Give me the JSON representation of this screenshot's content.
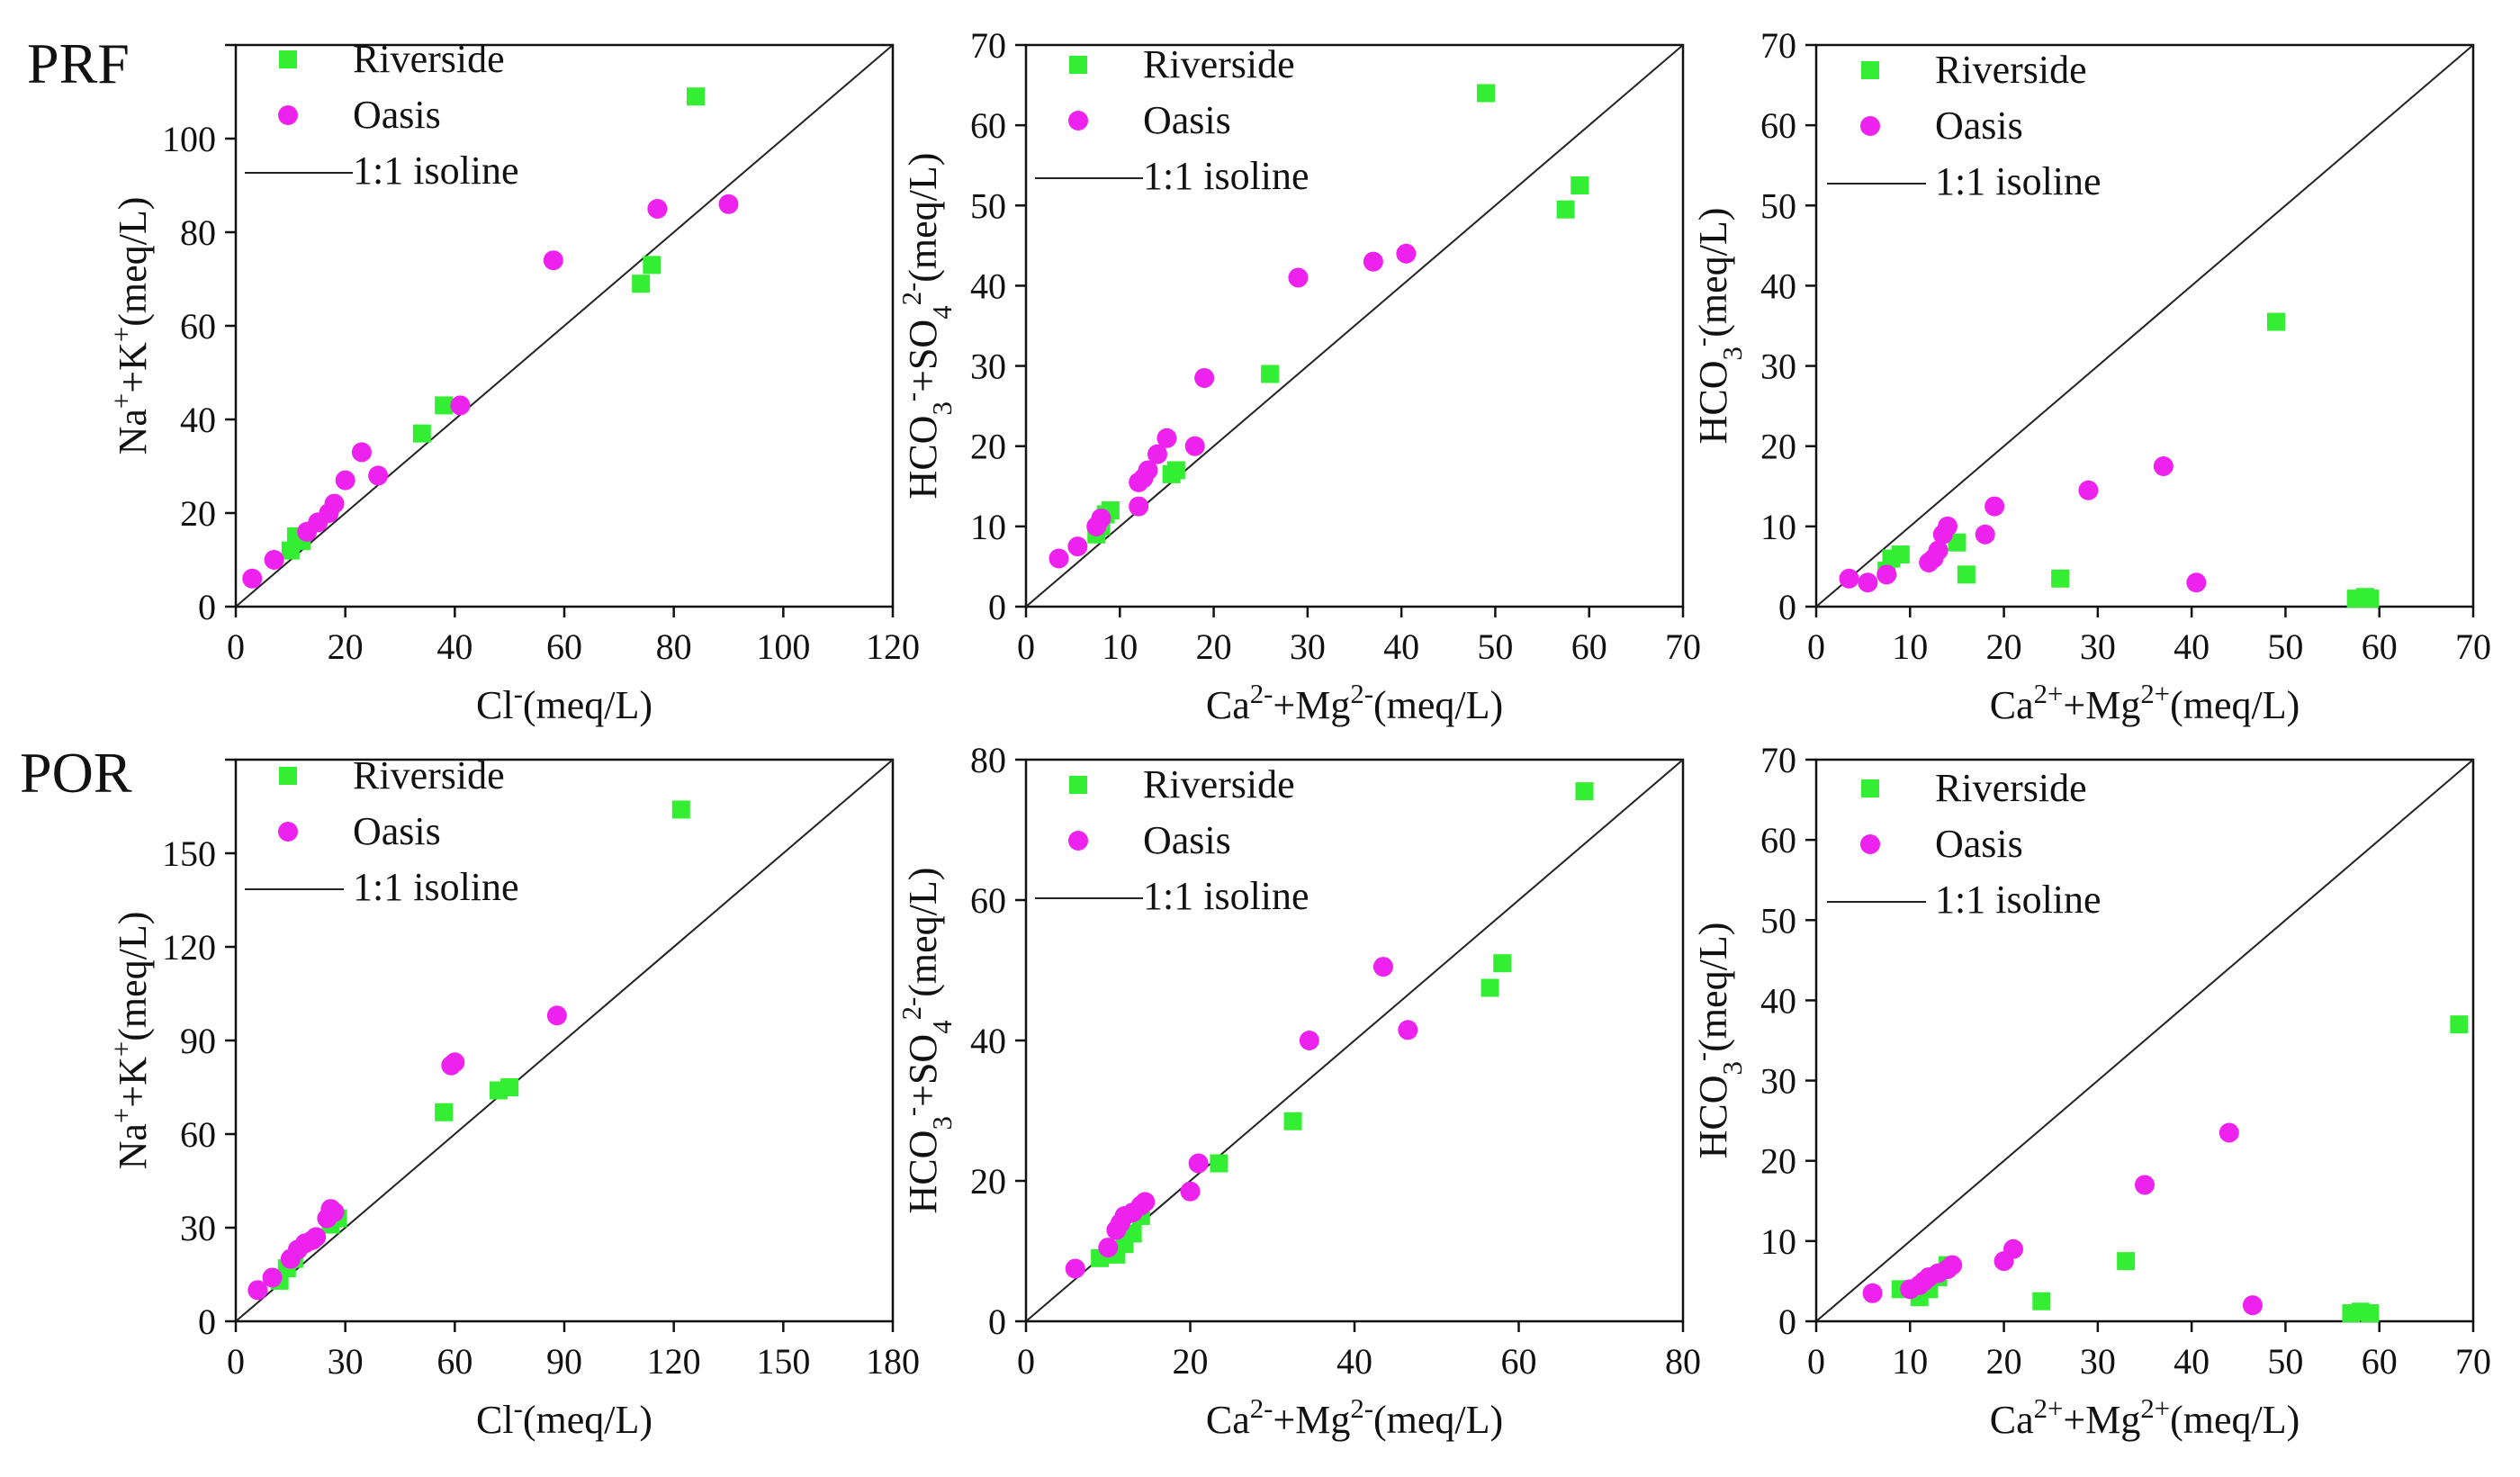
{
  "row_labels": [
    "PRF",
    "POR"
  ],
  "legend": {
    "riverside": "Riverside",
    "oasis": "Oasis",
    "isoline": "1:1 isoline"
  },
  "colors": {
    "riverside": "#33ee33",
    "oasis": "#ee22ee",
    "axis": "#111111",
    "isoline": "#222222"
  },
  "chart_data": [
    {
      "type": "scatter",
      "row": "PRF",
      "xlabel": "Cl⁻(meq/L)",
      "ylabel": "Na⁺+K⁺(meq/L)",
      "xlim": [
        0,
        120
      ],
      "ylim": [
        0,
        120
      ],
      "xticks": [
        0,
        20,
        40,
        60,
        80,
        100,
        120
      ],
      "yticks": [
        0,
        20,
        40,
        60,
        80,
        100,
        120
      ],
      "yticks_shown": [
        0,
        20,
        40,
        60,
        80,
        100
      ],
      "series": [
        {
          "name": "Riverside",
          "points": [
            [
              10,
              12
            ],
            [
              11,
              15
            ],
            [
              12,
              14
            ],
            [
              34,
              37
            ],
            [
              38,
              43
            ],
            [
              74,
              69
            ],
            [
              76,
              73
            ],
            [
              84,
              109
            ]
          ]
        },
        {
          "name": "Oasis",
          "points": [
            [
              3,
              6
            ],
            [
              7,
              10
            ],
            [
              13,
              16
            ],
            [
              15,
              18
            ],
            [
              17,
              20
            ],
            [
              18,
              22
            ],
            [
              20,
              27
            ],
            [
              23,
              33
            ],
            [
              26,
              28
            ],
            [
              41,
              43
            ],
            [
              58,
              74
            ],
            [
              77,
              85
            ],
            [
              90,
              86
            ]
          ]
        }
      ]
    },
    {
      "type": "scatter",
      "row": "PRF",
      "xlabel": "Ca²⁻+Mg²⁻(meq/L)",
      "ylabel": "HCO₃⁻+SO₄²⁻(meq/L)",
      "xlim": [
        0,
        70
      ],
      "ylim": [
        0,
        70
      ],
      "xticks": [
        0,
        10,
        20,
        30,
        40,
        50,
        60,
        70
      ],
      "yticks": [
        0,
        10,
        20,
        30,
        40,
        50,
        60,
        70
      ],
      "yticks_shown": [
        0,
        10,
        20,
        30,
        40,
        50,
        60,
        70
      ],
      "series": [
        {
          "name": "Riverside",
          "points": [
            [
              7.5,
              9
            ],
            [
              8,
              10
            ],
            [
              8.5,
              11.5
            ],
            [
              9,
              12
            ],
            [
              15.5,
              16.5
            ],
            [
              16,
              17
            ],
            [
              26,
              29
            ],
            [
              49,
              64
            ],
            [
              57.5,
              49.5
            ],
            [
              59,
              52.5
            ]
          ]
        },
        {
          "name": "Oasis",
          "points": [
            [
              3.5,
              6
            ],
            [
              5.5,
              7.5
            ],
            [
              7.5,
              10
            ],
            [
              8,
              11
            ],
            [
              12,
              12.5
            ],
            [
              12,
              15.5
            ],
            [
              12.5,
              16
            ],
            [
              13,
              17
            ],
            [
              14,
              19
            ],
            [
              15,
              21
            ],
            [
              18,
              20
            ],
            [
              19,
              28.5
            ],
            [
              29,
              41
            ],
            [
              37,
              43
            ],
            [
              40.5,
              44
            ]
          ]
        }
      ]
    },
    {
      "type": "scatter",
      "row": "PRF",
      "xlabel": "Ca²⁺+Mg²⁺(meq/L)",
      "ylabel": "HCO₃⁻(meq/L)",
      "xlim": [
        0,
        70
      ],
      "ylim": [
        0,
        70
      ],
      "xticks": [
        0,
        10,
        20,
        30,
        40,
        50,
        60,
        70
      ],
      "yticks": [
        0,
        10,
        20,
        30,
        40,
        50,
        60,
        70
      ],
      "yticks_shown": [
        0,
        10,
        20,
        30,
        40,
        50,
        60,
        70
      ],
      "series": [
        {
          "name": "Riverside",
          "points": [
            [
              7.5,
              4.5
            ],
            [
              8,
              6
            ],
            [
              9,
              6.5
            ],
            [
              15,
              8
            ],
            [
              16,
              4
            ],
            [
              26,
              3.5
            ],
            [
              49,
              35.5
            ],
            [
              57.5,
              1
            ],
            [
              58.5,
              1.2
            ],
            [
              59,
              1
            ]
          ]
        },
        {
          "name": "Oasis",
          "points": [
            [
              3.5,
              3.5
            ],
            [
              5.5,
              3
            ],
            [
              7.5,
              4
            ],
            [
              12,
              5.5
            ],
            [
              12.5,
              6
            ],
            [
              13,
              7
            ],
            [
              13.5,
              9
            ],
            [
              14,
              10
            ],
            [
              18,
              9
            ],
            [
              19,
              12.5
            ],
            [
              29,
              14.5
            ],
            [
              37,
              17.5
            ],
            [
              40.5,
              3
            ]
          ]
        }
      ]
    },
    {
      "type": "scatter",
      "row": "POR",
      "xlabel": "Cl⁻(meq/L)",
      "ylabel": "Na⁺+K⁺(meq/L)",
      "xlim": [
        0,
        180
      ],
      "ylim": [
        0,
        180
      ],
      "xticks": [
        0,
        30,
        60,
        90,
        120,
        150,
        180
      ],
      "yticks": [
        0,
        30,
        60,
        90,
        120,
        150,
        180
      ],
      "yticks_shown": [
        0,
        30,
        60,
        90,
        120,
        150
      ],
      "series": [
        {
          "name": "Riverside",
          "points": [
            [
              12,
              13
            ],
            [
              14,
              17
            ],
            [
              16,
              20
            ],
            [
              26,
              31
            ],
            [
              28,
              33
            ],
            [
              57,
              67
            ],
            [
              72,
              74
            ],
            [
              75,
              75
            ],
            [
              122,
              164
            ]
          ]
        },
        {
          "name": "Oasis",
          "points": [
            [
              6,
              10
            ],
            [
              10,
              14
            ],
            [
              15,
              20
            ],
            [
              17,
              23
            ],
            [
              19,
              25
            ],
            [
              21,
              26
            ],
            [
              22,
              27
            ],
            [
              25,
              33
            ],
            [
              26,
              36
            ],
            [
              27,
              35
            ],
            [
              59,
              82
            ],
            [
              60,
              83
            ],
            [
              88,
              98
            ]
          ]
        }
      ]
    },
    {
      "type": "scatter",
      "row": "POR",
      "xlabel": "Ca²⁻+Mg²⁻(meq/L)",
      "ylabel": "HCO₃⁻+SO₄²⁻(meq/L)",
      "xlim": [
        0,
        80
      ],
      "ylim": [
        0,
        80
      ],
      "xticks": [
        0,
        20,
        40,
        60,
        80
      ],
      "yticks": [
        0,
        20,
        40,
        60,
        80
      ],
      "yticks_shown": [
        0,
        20,
        40,
        60,
        80
      ],
      "series": [
        {
          "name": "Riverside",
          "points": [
            [
              9,
              9
            ],
            [
              11,
              9.5
            ],
            [
              12,
              11
            ],
            [
              13,
              12.5
            ],
            [
              14,
              15
            ],
            [
              23.5,
              22.5
            ],
            [
              32.5,
              28.5
            ],
            [
              56.5,
              47.5
            ],
            [
              58,
              51
            ],
            [
              68,
              75.5
            ]
          ]
        },
        {
          "name": "Oasis",
          "points": [
            [
              6,
              7.5
            ],
            [
              10,
              10.5
            ],
            [
              11,
              13
            ],
            [
              11.5,
              14
            ],
            [
              12,
              15
            ],
            [
              13,
              15.5
            ],
            [
              14,
              16.5
            ],
            [
              14.5,
              17
            ],
            [
              20,
              18.5
            ],
            [
              21,
              22.5
            ],
            [
              34.5,
              40
            ],
            [
              43.5,
              50.5
            ],
            [
              46.5,
              41.5
            ]
          ]
        }
      ]
    },
    {
      "type": "scatter",
      "row": "POR",
      "xlabel": "Ca²⁺+Mg²⁺(meq/L)",
      "ylabel": "HCO₃⁻(meq/L)",
      "xlim": [
        0,
        70
      ],
      "ylim": [
        0,
        70
      ],
      "xticks": [
        0,
        10,
        20,
        30,
        40,
        50,
        60,
        70
      ],
      "yticks": [
        0,
        10,
        20,
        30,
        40,
        50,
        60,
        70
      ],
      "yticks_shown": [
        0,
        10,
        20,
        30,
        40,
        50,
        60,
        70
      ],
      "series": [
        {
          "name": "Riverside",
          "points": [
            [
              9,
              4
            ],
            [
              11,
              3
            ],
            [
              12,
              4
            ],
            [
              13,
              5.5
            ],
            [
              14,
              7
            ],
            [
              24,
              2.5
            ],
            [
              33,
              7.5
            ],
            [
              57,
              1
            ],
            [
              58,
              1.2
            ],
            [
              59,
              1
            ],
            [
              68.5,
              37
            ]
          ]
        },
        {
          "name": "Oasis",
          "points": [
            [
              6,
              3.5
            ],
            [
              10,
              4
            ],
            [
              11,
              4.5
            ],
            [
              11.5,
              5
            ],
            [
              12,
              5.5
            ],
            [
              13,
              6
            ],
            [
              14,
              6.5
            ],
            [
              14.5,
              7
            ],
            [
              20,
              7.5
            ],
            [
              21,
              9
            ],
            [
              35,
              17
            ],
            [
              44,
              23.5
            ],
            [
              46.5,
              2
            ]
          ]
        }
      ]
    }
  ]
}
